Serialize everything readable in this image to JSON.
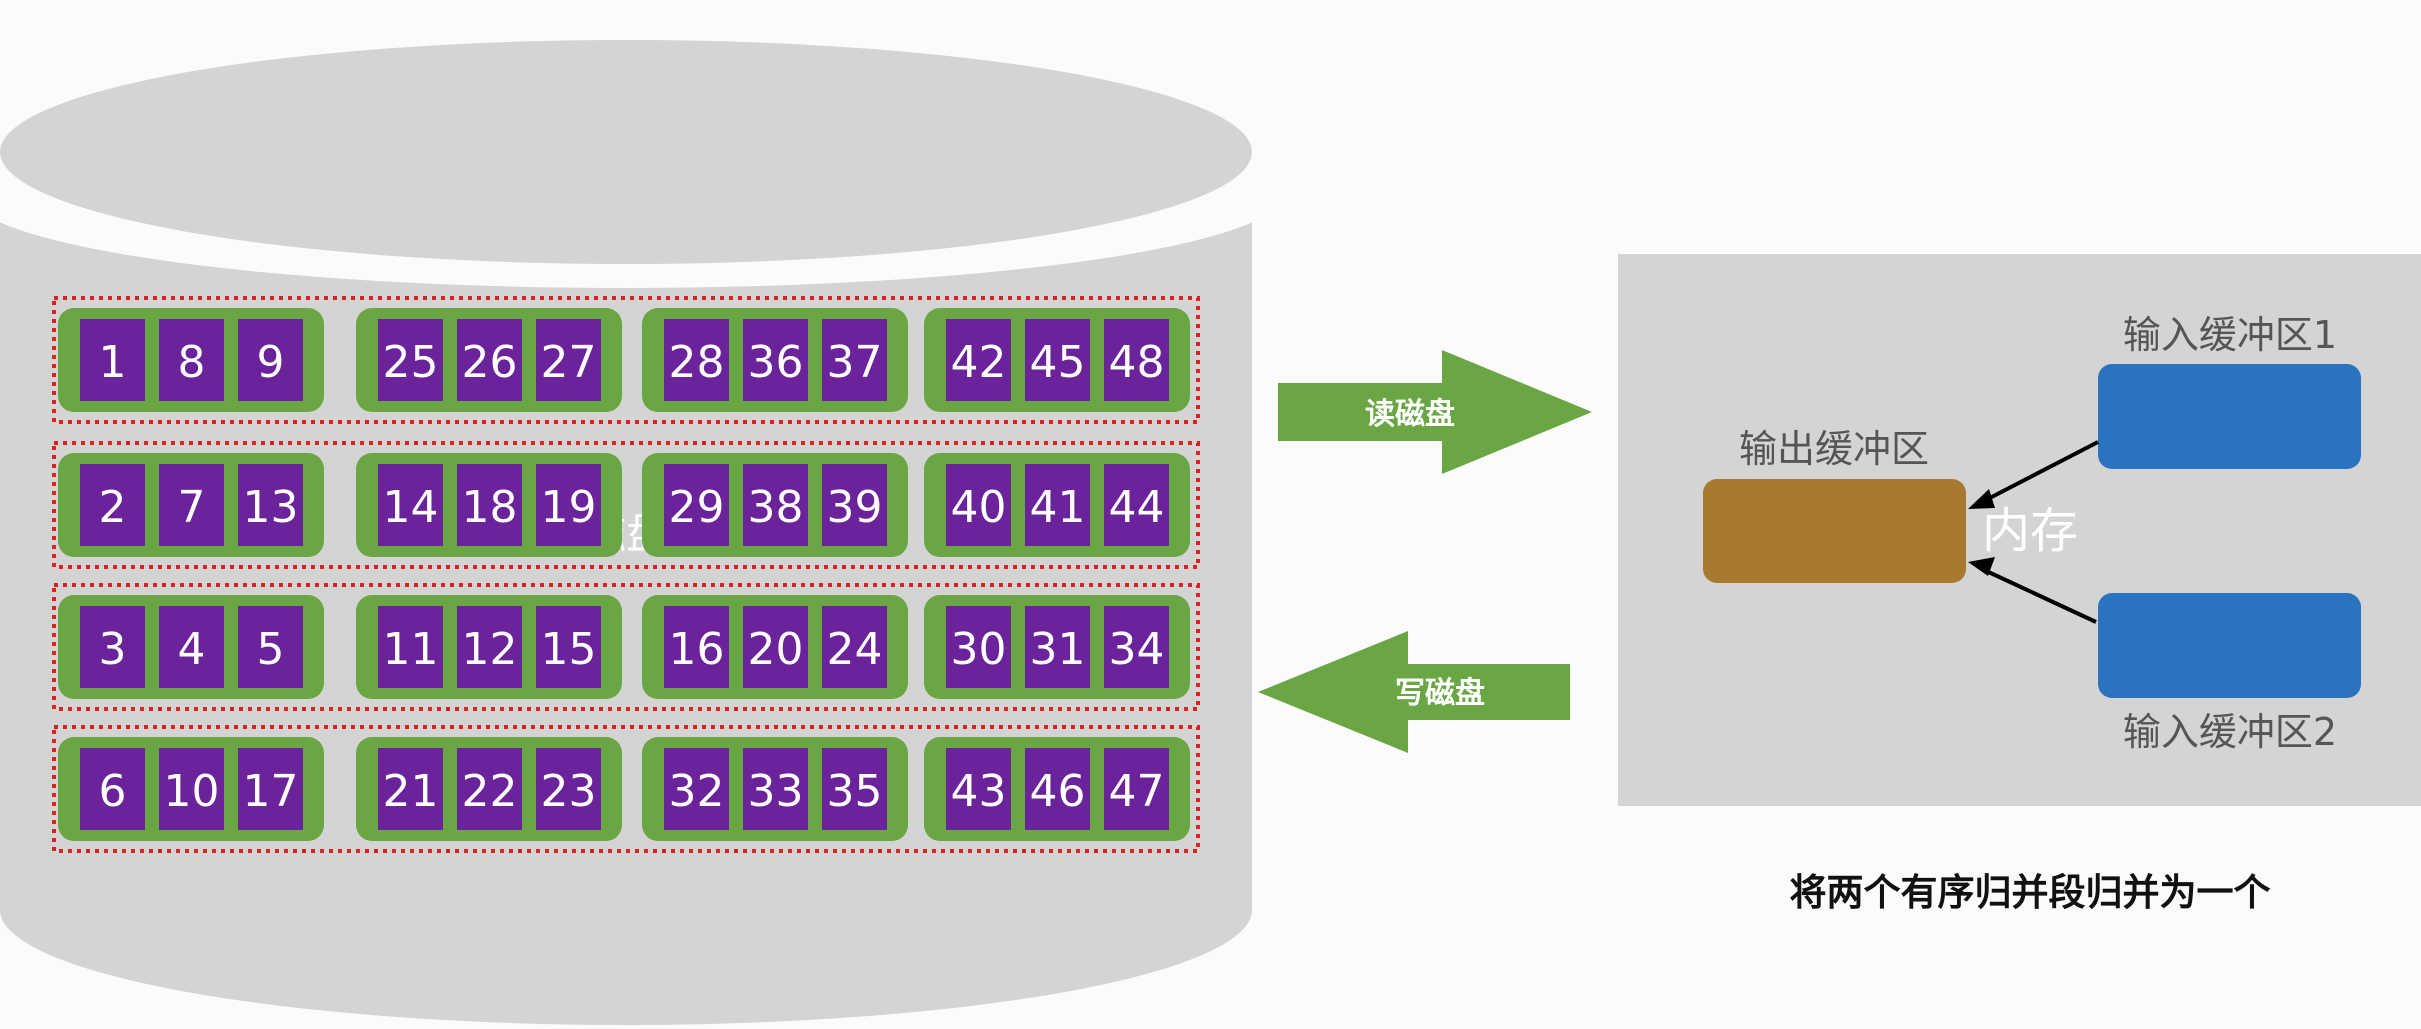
{
  "disk": {
    "label": "磁盘",
    "rows": [
      [
        [
          1,
          8,
          9
        ],
        [
          25,
          26,
          27
        ],
        [
          28,
          36,
          37
        ],
        [
          42,
          45,
          48
        ]
      ],
      [
        [
          2,
          7,
          13
        ],
        [
          14,
          18,
          19
        ],
        [
          29,
          38,
          39
        ],
        [
          40,
          41,
          44
        ]
      ],
      [
        [
          3,
          4,
          5
        ],
        [
          11,
          12,
          15
        ],
        [
          16,
          20,
          24
        ],
        [
          30,
          31,
          34
        ]
      ],
      [
        [
          6,
          10,
          17
        ],
        [
          21,
          22,
          23
        ],
        [
          32,
          33,
          35
        ],
        [
          43,
          46,
          47
        ]
      ]
    ]
  },
  "arrows": {
    "read": "读磁盘",
    "write": "写磁盘"
  },
  "memory": {
    "label": "内存",
    "output_buffer": "输出缓冲区",
    "input_buffer_1": "输入缓冲区1",
    "input_buffer_2": "输入缓冲区2"
  },
  "caption": "将两个有序归并段归并为一个",
  "colors": {
    "disk": "#d4d4d4",
    "segment": "#6aa744",
    "cell": "#6b239b",
    "row_border": "#e02020",
    "arrow": "#6aa744",
    "output_buffer": "#a87a30",
    "input_buffer": "#2a73bf",
    "memory_panel": "#d4d4d4"
  }
}
